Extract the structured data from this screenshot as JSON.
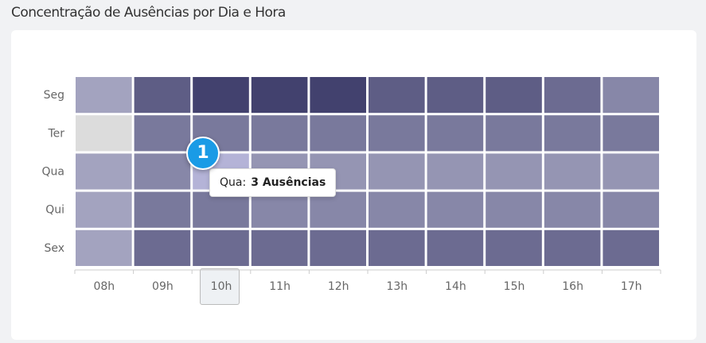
{
  "chart_data": {
    "type": "heatmap",
    "title": "Concentração de Ausências por Dia e Hora",
    "x": [
      "08h",
      "09h",
      "10h",
      "11h",
      "12h",
      "13h",
      "14h",
      "15h",
      "16h",
      "17h"
    ],
    "y": [
      "Seg",
      "Ter",
      "Qua",
      "Qui",
      "Sex"
    ],
    "values": [
      [
        2,
        7,
        9,
        9,
        9,
        7,
        7,
        7,
        6,
        4
      ],
      [
        0,
        5,
        5,
        5,
        5,
        5,
        5,
        5,
        5,
        5
      ],
      [
        2,
        4,
        3,
        3,
        3,
        3,
        3,
        3,
        3,
        3
      ],
      [
        2,
        5,
        5,
        4,
        4,
        4,
        4,
        4,
        4,
        4
      ],
      [
        2,
        6,
        6,
        6,
        6,
        6,
        6,
        6,
        6,
        6
      ]
    ],
    "zero_color": "#dcdcdc",
    "color_min": "#a3a3bf",
    "color_max": "#42416e",
    "hover_color": "#b4b3d7",
    "tooltip": {
      "category": "Qua:",
      "text": "3 Ausências"
    },
    "marker": "1"
  }
}
